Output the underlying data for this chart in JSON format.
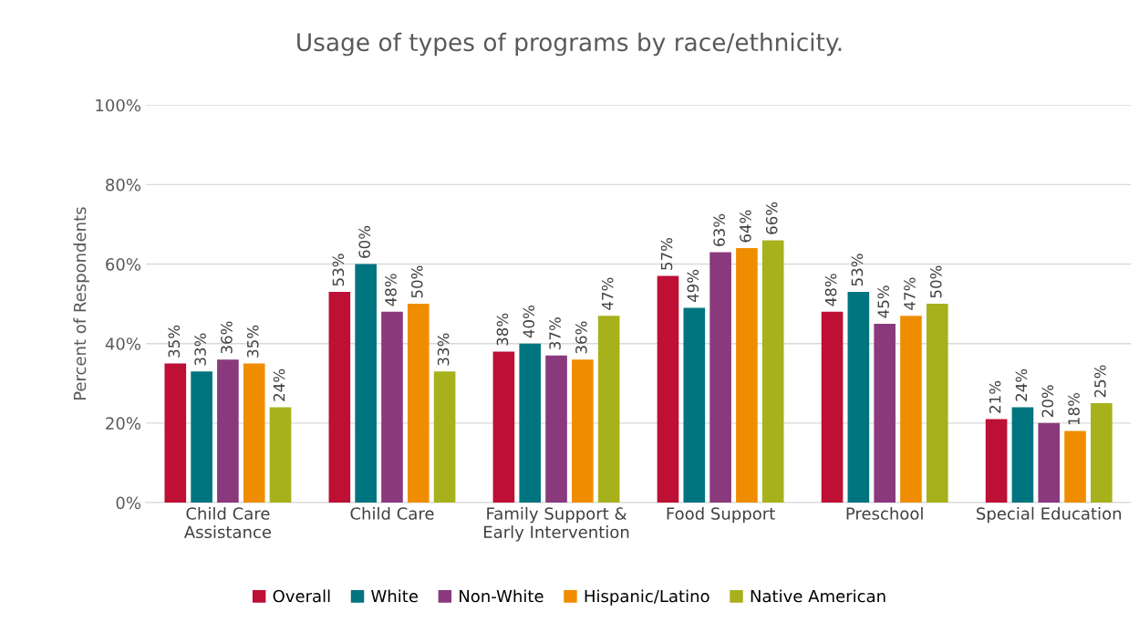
{
  "chart_data": {
    "type": "bar",
    "title": "Usage of types of programs by race/ethnicity.",
    "ylabel": "Percent of Respondents",
    "categories": [
      "Child Care\nAssistance",
      "Child Care",
      "Family Support &\nEarly Intervention",
      "Food Support",
      "Preschool",
      "Special Education"
    ],
    "series": [
      {
        "name": "Overall",
        "color": "#be0f34",
        "values": [
          35,
          53,
          38,
          57,
          48,
          21
        ],
        "value_labels": [
          "35%",
          "53%",
          "38%",
          "57%",
          "48%",
          "21%"
        ]
      },
      {
        "name": "White",
        "color": "#00747f",
        "values": [
          33,
          60,
          40,
          49,
          53,
          24
        ],
        "value_labels": [
          "33%",
          "60%",
          "40%",
          "49%",
          "53%",
          "24%"
        ]
      },
      {
        "name": "Non-White",
        "color": "#8a3a7c",
        "values": [
          36,
          48,
          37,
          63,
          45,
          20
        ],
        "value_labels": [
          "36%",
          "48%",
          "37%",
          "63%",
          "45%",
          "20%"
        ]
      },
      {
        "name": "Hispanic/Latino",
        "color": "#f08c00",
        "values": [
          35,
          50,
          36,
          64,
          47,
          18
        ],
        "value_labels": [
          "35%",
          "50%",
          "36%",
          "64%",
          "47%",
          "18%"
        ]
      },
      {
        "name": "Native American",
        "color": "#a7b11b",
        "values": [
          24,
          33,
          47,
          66,
          50,
          25
        ],
        "value_labels": [
          "24%",
          "33%",
          "47%",
          "66%",
          "50%",
          "25%"
        ]
      }
    ],
    "ylim": [
      0,
      100
    ],
    "yticks": [
      {
        "value": 0,
        "label": "0%"
      },
      {
        "value": 20,
        "label": "20%"
      },
      {
        "value": 40,
        "label": "40%"
      },
      {
        "value": 60,
        "label": "60%"
      },
      {
        "value": 80,
        "label": "80%"
      },
      {
        "value": 100,
        "label": "100%"
      }
    ],
    "grid": "y",
    "legend": "bottom"
  }
}
